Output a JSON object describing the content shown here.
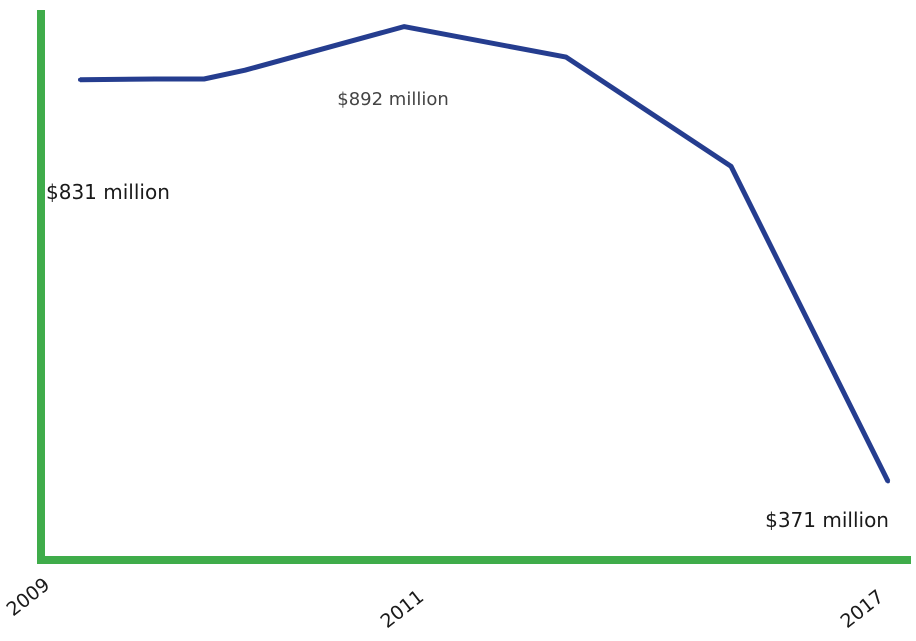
{
  "chart_data": {
    "type": "line",
    "title": "",
    "xlabel": "",
    "ylabel": "",
    "x_ticks": [
      "2009",
      "2011",
      "2017"
    ],
    "series": [
      {
        "values": [
          831,
          832,
          832,
          842,
          892,
          857,
          732,
          371
        ]
      }
    ],
    "ylim": [
      281,
      911
    ],
    "annotations": [
      {
        "point_index": 0,
        "text": "$831 million"
      },
      {
        "point_index": 4,
        "text": "$892 million"
      },
      {
        "point_index": 7,
        "text": "$371 million"
      }
    ],
    "grid": false,
    "colors": {
      "line": "#253d8f",
      "axes": "#3fac4a"
    }
  }
}
